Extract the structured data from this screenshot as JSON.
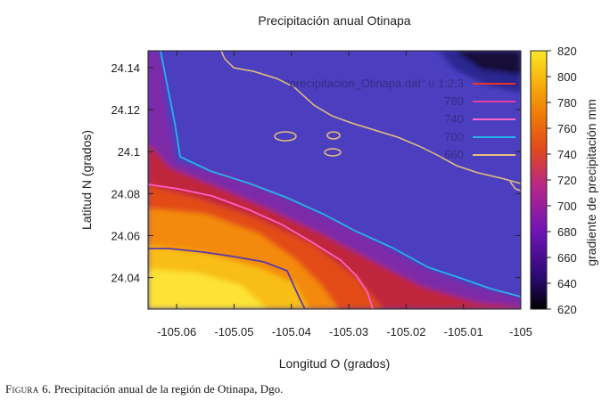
{
  "chart_data": {
    "type": "heatmap",
    "title": "Precipitación anual Otinapa",
    "xlabel": "Longitud O (grados)",
    "ylabel": "Latitud N (grados)",
    "colorbar_label": "gradiente de precipitación mm",
    "xlim": [
      -105.065,
      -105.0
    ],
    "ylim": [
      24.025,
      24.148
    ],
    "x_ticks": [
      -105.06,
      -105.05,
      -105.04,
      -105.03,
      -105.02,
      -105.01,
      -105.0
    ],
    "x_tick_labels": [
      "-105.06",
      "-105.05",
      "-105.04",
      "-105.03",
      "-105.02",
      "-105.01",
      "-105"
    ],
    "y_ticks": [
      24.04,
      24.06,
      24.08,
      24.1,
      24.12,
      24.14
    ],
    "y_tick_labels": [
      "24.04",
      "24.06",
      "24.08",
      "24.1",
      "24.12",
      "24.14"
    ],
    "colorbar_range": [
      620,
      820
    ],
    "colorbar_ticks": [
      620,
      640,
      660,
      680,
      700,
      720,
      740,
      760,
      780,
      800,
      820
    ],
    "colormap": [
      "#000000",
      "#2a0a72",
      "#6f13b6",
      "#b5268a",
      "#e2491d",
      "#ef7a06",
      "#f8b10c",
      "#fde827"
    ],
    "legend": [
      {
        "label": "\"precipitacion_Otinapa.dat\" u 1:2:3",
        "color": "#e8332a"
      },
      {
        "label": "780",
        "color": "#e040a8"
      },
      {
        "label": "740",
        "color": "#ff66cc"
      },
      {
        "label": "700",
        "color": "#23b5e8"
      },
      {
        "label": "660",
        "color": "#e8c07a"
      }
    ],
    "contour_levels": [
      780,
      740,
      700,
      660
    ],
    "field_samples": [
      {
        "x": -105.065,
        "y": 24.03,
        "value": 805
      },
      {
        "x": -105.065,
        "y": 24.06,
        "value": 780
      },
      {
        "x": -105.065,
        "y": 24.085,
        "value": 720
      },
      {
        "x": -105.065,
        "y": 24.12,
        "value": 680
      },
      {
        "x": -105.065,
        "y": 24.148,
        "value": 668
      },
      {
        "x": -105.045,
        "y": 24.03,
        "value": 795
      },
      {
        "x": -105.04,
        "y": 24.07,
        "value": 735
      },
      {
        "x": -105.04,
        "y": 24.1,
        "value": 685
      },
      {
        "x": -105.045,
        "y": 24.14,
        "value": 668
      },
      {
        "x": -105.025,
        "y": 24.03,
        "value": 745
      },
      {
        "x": -105.02,
        "y": 24.06,
        "value": 690
      },
      {
        "x": -105.02,
        "y": 24.1,
        "value": 672
      },
      {
        "x": -105.025,
        "y": 24.13,
        "value": 662
      },
      {
        "x": -105.005,
        "y": 24.03,
        "value": 700
      },
      {
        "x": -105.005,
        "y": 24.08,
        "value": 668
      },
      {
        "x": -105.005,
        "y": 24.12,
        "value": 655
      },
      {
        "x": -105.005,
        "y": 24.145,
        "value": 632
      }
    ]
  },
  "caption": {
    "label": "Figura 6.",
    "text": "Precipitación anual de la región de Otinapa, Dgo."
  }
}
